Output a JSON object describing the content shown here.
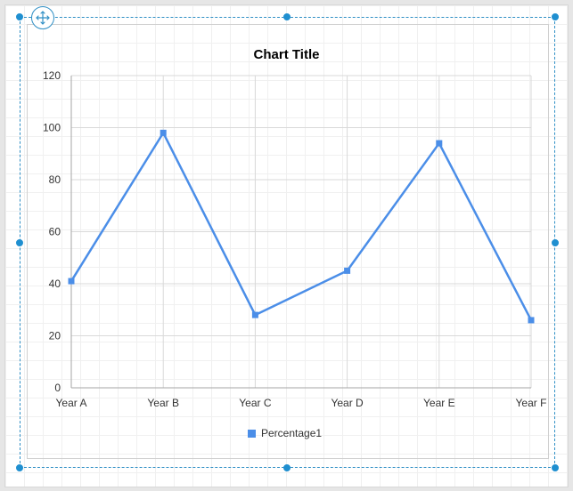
{
  "chart_data": {
    "type": "line",
    "title": "Chart Title",
    "categories": [
      "Year A",
      "Year B",
      "Year C",
      "Year D",
      "Year E",
      "Year F"
    ],
    "series": [
      {
        "name": "Percentage1",
        "values": [
          41,
          98,
          28,
          45,
          94,
          26
        ],
        "color": "#4b8ee8"
      }
    ],
    "ylim": [
      0,
      120
    ],
    "yticks": [
      "0",
      "20",
      "40",
      "60",
      "80",
      "100",
      "120"
    ],
    "xlabel": "",
    "ylabel": "",
    "grid": true,
    "legend_position": "bottom"
  },
  "icons": {
    "move_handle": "move-arrows-icon"
  },
  "colors": {
    "selection": "#2f8fc5",
    "series": "#4b8ee8"
  }
}
